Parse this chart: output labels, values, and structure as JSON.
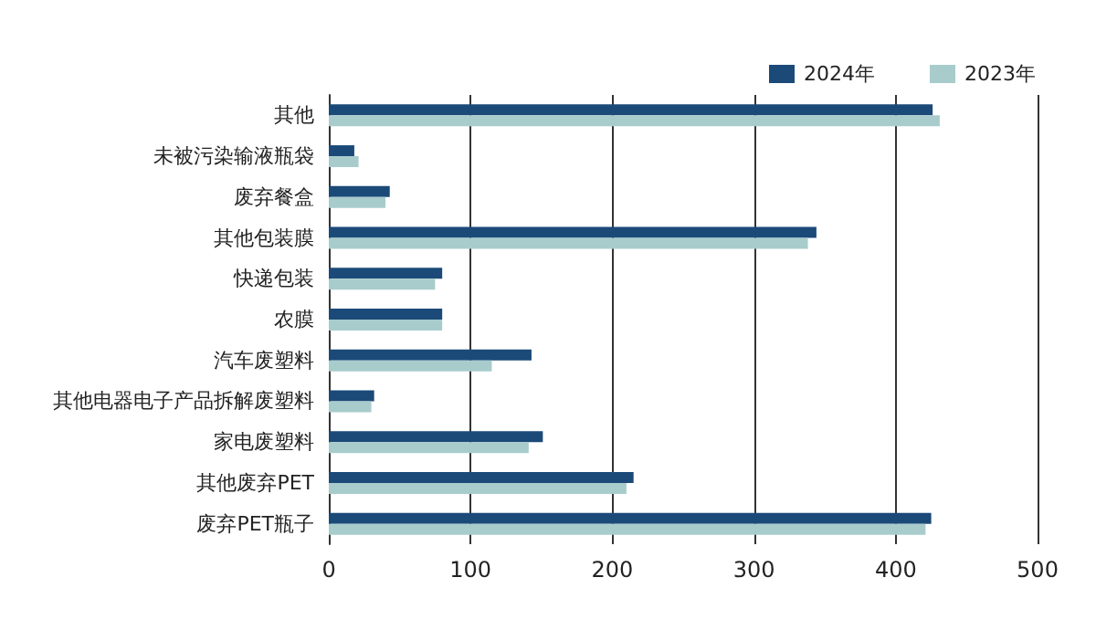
{
  "chart_data": {
    "type": "bar",
    "orientation": "horizontal",
    "categories": [
      "其他",
      "未被污染输液瓶袋",
      "废弃餐盒",
      "其他包装膜",
      "快递包装",
      "农膜",
      "汽车废塑料",
      "其他电器电子产品拆解废塑料",
      "家电废塑料",
      "其他废弃PET",
      "废弃PET瓶子"
    ],
    "series": [
      {
        "name": "2024年",
        "color": "#1b4a78",
        "values": [
          426,
          18,
          43,
          344,
          80,
          80,
          143,
          32,
          151,
          215,
          425
        ]
      },
      {
        "name": "2023年",
        "color": "#a8cccc",
        "values": [
          431,
          21,
          40,
          338,
          75,
          80,
          115,
          30,
          141,
          210,
          421
        ]
      }
    ],
    "xlim": [
      0,
      500
    ],
    "xticks": [
      0,
      100,
      200,
      300,
      400,
      500
    ],
    "grid": "x",
    "legend": "top right"
  }
}
